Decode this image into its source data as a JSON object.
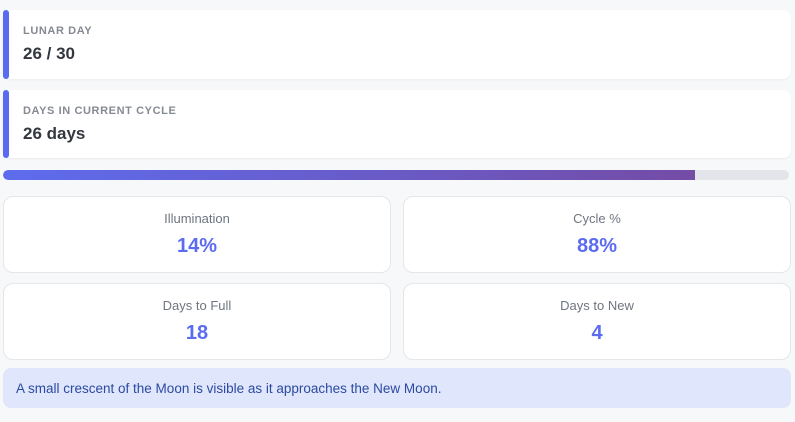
{
  "colors": {
    "accent": "#5b6bef",
    "stat_value": "#5c6cf2",
    "progress_gradient_start": "#5d6cee",
    "progress_gradient_end": "#744ca6",
    "progress_track": "#e4e5ea",
    "banner_bg": "#e0e6fb",
    "banner_text": "#2b4aa2"
  },
  "info_cards": [
    {
      "label": "LUNAR DAY",
      "value": "26 / 30"
    },
    {
      "label": "DAYS IN CURRENT CYCLE",
      "value": "26 days"
    }
  ],
  "progress": {
    "percent": 88
  },
  "stats": [
    {
      "label": "Illumination",
      "value": "14%"
    },
    {
      "label": "Cycle %",
      "value": "88%"
    },
    {
      "label": "Days to Full",
      "value": "18"
    },
    {
      "label": "Days to New",
      "value": "4"
    }
  ],
  "banner": {
    "text": "A small crescent of the Moon is visible as it approaches the New Moon."
  }
}
